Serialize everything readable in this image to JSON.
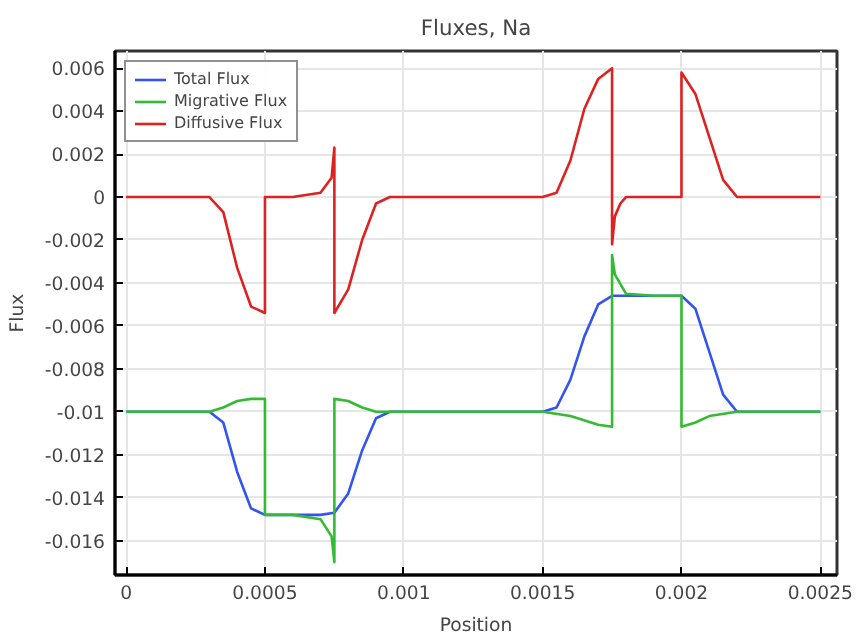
{
  "chart_data": {
    "type": "line",
    "title": "Fluxes, Na",
    "xlabel": "Position",
    "ylabel": "Flux",
    "xlim": [
      -4e-05,
      0.00256
    ],
    "ylim": [
      -0.0176,
      0.0068
    ],
    "xticks": [
      0,
      0.0005,
      0.001,
      0.0015,
      0.002,
      0.0025
    ],
    "yticks": [
      0.006,
      0.004,
      0.002,
      0,
      -0.002,
      -0.004,
      -0.006,
      -0.008,
      -0.01,
      -0.012,
      -0.014,
      -0.016
    ],
    "grid": true,
    "legend": "top left",
    "line_style": "solid",
    "marker": "none",
    "series": [
      {
        "name": "Total Flux",
        "color": "#3355ee",
        "x": [
          0,
          0.0003,
          0.00035,
          0.0004,
          0.00045,
          0.0005,
          0.0006,
          0.0007,
          0.00075,
          0.0008,
          0.00085,
          0.0009,
          0.00095,
          0.001,
          0.0015,
          0.00155,
          0.0016,
          0.00165,
          0.0017,
          0.00175,
          0.0018,
          0.0019,
          0.002,
          0.00205,
          0.0021,
          0.00215,
          0.0022,
          0.0025
        ],
        "values": [
          -0.01,
          -0.01,
          -0.0105,
          -0.0128,
          -0.0145,
          -0.0148,
          -0.0148,
          -0.0148,
          -0.0147,
          -0.0138,
          -0.0118,
          -0.0103,
          -0.01,
          -0.01,
          -0.01,
          -0.0098,
          -0.0085,
          -0.0065,
          -0.005,
          -0.0046,
          -0.0046,
          -0.0046,
          -0.0046,
          -0.0052,
          -0.0072,
          -0.0092,
          -0.01,
          -0.01
        ]
      },
      {
        "name": "Migrative Flux",
        "color": "#33bb33",
        "x": [
          0,
          0.0003,
          0.00035,
          0.0004,
          0.00045,
          0.0005,
          0.0005,
          0.0006,
          0.0007,
          0.00074,
          0.00075,
          0.00075,
          0.0008,
          0.00085,
          0.0009,
          0.00095,
          0.0015,
          0.0016,
          0.0017,
          0.00175,
          0.00175,
          0.00176,
          0.0018,
          0.0019,
          0.002,
          0.002,
          0.00205,
          0.0021,
          0.0022,
          0.0025
        ],
        "values": [
          -0.01,
          -0.01,
          -0.0098,
          -0.0095,
          -0.0094,
          -0.0094,
          -0.0148,
          -0.0148,
          -0.015,
          -0.0158,
          -0.017,
          -0.0094,
          -0.0095,
          -0.0098,
          -0.01,
          -0.01,
          -0.01,
          -0.0102,
          -0.0106,
          -0.0107,
          -0.0027,
          -0.0036,
          -0.0045,
          -0.0046,
          -0.0046,
          -0.0107,
          -0.0105,
          -0.0102,
          -0.01,
          -0.01
        ]
      },
      {
        "name": "Diffusive Flux",
        "color": "#dd2222",
        "x": [
          0,
          0.0003,
          0.00035,
          0.0004,
          0.00045,
          0.0005,
          0.0005,
          0.0006,
          0.0007,
          0.00074,
          0.00075,
          0.00075,
          0.0008,
          0.00085,
          0.0009,
          0.00095,
          0.001,
          0.0015,
          0.00155,
          0.0016,
          0.00165,
          0.0017,
          0.00175,
          0.00175,
          0.00176,
          0.00178,
          0.0018,
          0.0019,
          0.002,
          0.002,
          0.00205,
          0.0021,
          0.00215,
          0.0022,
          0.0025
        ],
        "values": [
          0,
          0,
          -0.0007,
          -0.0033,
          -0.0051,
          -0.0054,
          0,
          0,
          0.0002,
          0.0009,
          0.0023,
          -0.0054,
          -0.0043,
          -0.002,
          -0.0003,
          0,
          0,
          0,
          0.0002,
          0.0017,
          0.0041,
          0.0055,
          0.006,
          -0.0022,
          -0.0009,
          -0.0003,
          0,
          0,
          0,
          0.0058,
          0.0048,
          0.0028,
          0.0008,
          0,
          0
        ]
      }
    ]
  }
}
